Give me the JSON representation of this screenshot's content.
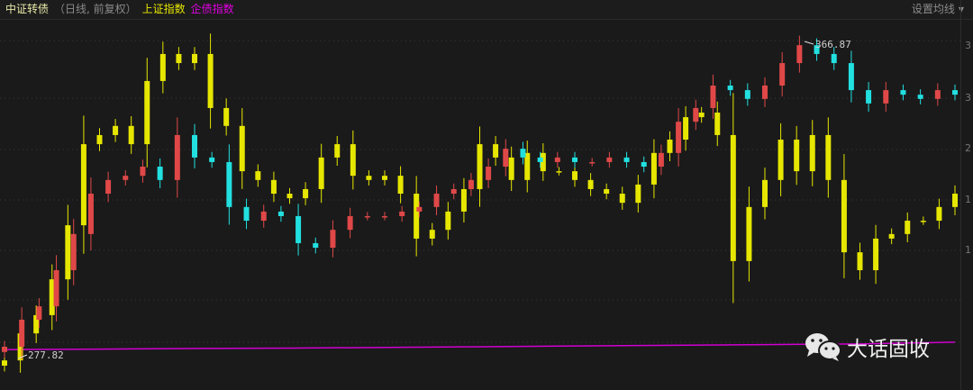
{
  "header": {
    "title": "中证转债",
    "subtitle": "（日线, 前复权）",
    "overlay1": "上证指数",
    "overlay2": "企债指数",
    "ma_setting": "设置均线",
    "ma_icon": "caret-down-icon"
  },
  "y_axis_labels": [
    "3",
    "3",
    "2",
    "1",
    "1"
  ],
  "watermark": {
    "icon": "wechat-icon",
    "text": "大话固收"
  },
  "colors": {
    "up": "#e04848",
    "down": "#22e0e0",
    "overlay1": "#e6e600",
    "overlay2": "#d000d0",
    "background": "#1a1a1a"
  },
  "chart_data": {
    "type": "candlestick",
    "title": "中证转债",
    "grid": true,
    "annotations": {
      "high": "366.87",
      "low": "277.82"
    },
    "series": [
      {
        "name": "中证转债",
        "style": "candlestick-red-cyan",
        "close": [
          280.4,
          288.1,
          291.9,
          302.2,
          312.5,
          324.0,
          327.9,
          329.1,
          331.7,
          327.9,
          340.7,
          334.3,
          333.0,
          320.2,
          316.3,
          318.9,
          317.6,
          309.9,
          308.6,
          313.7,
          317.6,
          317.6,
          317.6,
          318.9,
          320.2,
          324.0,
          325.3,
          327.9,
          331.7,
          336.8,
          334.3,
          333.0,
          334.3,
          333.0,
          333.0,
          334.3,
          333.0,
          331.7,
          335.6,
          344.5,
          348.4,
          354.8,
          353.5,
          351.0,
          354.8,
          361.2,
          366.3,
          363.8,
          361.2,
          353.5,
          349.7,
          353.5,
          352.2,
          351.0,
          353.5,
          352.2
        ]
      },
      {
        "name": "上证指数",
        "style": "candlestick-yellow",
        "close": [
          276.5,
          284.2,
          289.4,
          299.6,
          315.0,
          338.1,
          340.7,
          343.3,
          338.1,
          356.1,
          363.8,
          361.2,
          363.8,
          348.4,
          343.3,
          330.4,
          327.9,
          324.0,
          322.7,
          325.3,
          334.3,
          338.1,
          329.1,
          327.9,
          329.1,
          324.0,
          311.2,
          313.7,
          318.9,
          325.3,
          338.1,
          334.3,
          327.9,
          335.6,
          330.4,
          330.4,
          327.9,
          325.3,
          324.0,
          321.4,
          326.6,
          335.6,
          339.4,
          345.8,
          347.1,
          340.7,
          304.8,
          320.2,
          327.9,
          339.4,
          330.4,
          340.7,
          327.9,
          307.3,
          302.2,
          311.2,
          312.5,
          316.3,
          316.3,
          320.2,
          324.0
        ]
      },
      {
        "name": "企债指数",
        "style": "line-magenta",
        "values": [
          279.6,
          279.7,
          279.9,
          280.0,
          280.2,
          280.4,
          280.6,
          280.8,
          281.0,
          281.2,
          281.7
        ]
      }
    ]
  }
}
